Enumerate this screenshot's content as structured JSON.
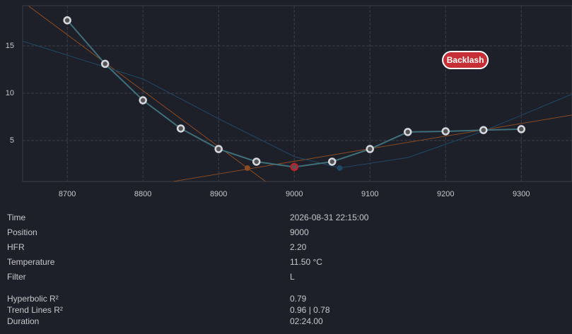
{
  "chart_data": {
    "type": "line",
    "x": [
      8700,
      8750,
      8800,
      8850,
      8900,
      8950,
      9000,
      9050,
      9100,
      9150,
      9200,
      9250,
      9300
    ],
    "values": [
      17.7,
      13.1,
      9.25,
      6.27,
      4.1,
      2.76,
      2.2,
      2.76,
      4.1,
      5.9,
      5.97,
      6.1,
      6.2
    ],
    "color": "#3f6f78",
    "marker_colors": [
      "#d8d8e0",
      "#d8d8e0",
      "#d8d8e0",
      "#d8d8e0",
      "#d8d8e0",
      "#d8d8e0",
      "#c0202a",
      "#d8d8e0",
      "#d8d8e0",
      "#d8d8e0",
      "#d8d8e0",
      "#d8d8e0",
      "#d8d8e0"
    ],
    "fits": [
      {
        "color": "#8a4a22",
        "x": [
          8649,
          8962
        ],
        "values": [
          19.2,
          0.67
        ],
        "point": {
          "x": 8938,
          "y": 2.09
        }
      },
      {
        "color": "#8a4a22",
        "x": [
          8840,
          9367
        ],
        "values": [
          0.67,
          7.69
        ]
      },
      {
        "color": "#1f4a66",
        "x": [
          8641,
          8800,
          8900,
          9000,
          9060,
          9150,
          9250,
          9367
        ],
        "values": [
          15.5,
          11.5,
          7.3,
          3.3,
          2.1,
          3.2,
          6.0,
          9.9
        ],
        "point": {
          "x": 9060,
          "y": 2.09
        }
      }
    ],
    "annotation": {
      "text": "Backlash",
      "x": 9226,
      "y": 13.5,
      "color": "#c62f35"
    },
    "xlim": [
      8641,
      9367
    ],
    "ylim": [
      0.67,
      19.25
    ],
    "xticks": [
      8700,
      8800,
      8900,
      9000,
      9100,
      9200,
      9300
    ],
    "yticks": [
      5,
      10,
      15
    ],
    "grid": true
  },
  "details": {
    "rows": [
      [
        "Time",
        "2026-08-31 22:15:00"
      ],
      [
        "Position",
        "9000"
      ],
      [
        "HFR",
        "2.20"
      ],
      [
        "Temperature",
        "11.50 °C"
      ],
      [
        "Filter",
        "L"
      ]
    ],
    "fit_rows": [
      [
        "Hyperbolic R²",
        "0.79"
      ],
      [
        "Trend Lines R²",
        "0.96 | 0.78"
      ],
      [
        "Duration",
        "02:24.00"
      ]
    ]
  }
}
